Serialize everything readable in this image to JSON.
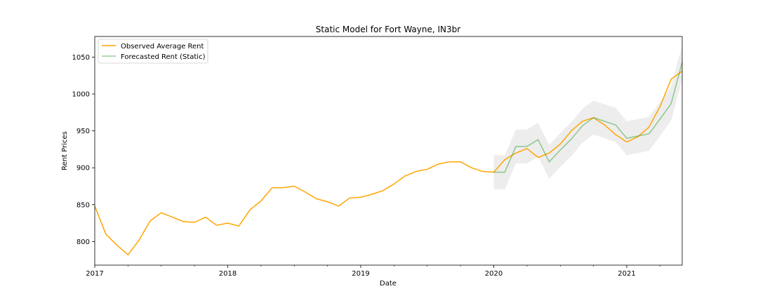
{
  "chart_data": {
    "type": "line",
    "title": "Static Model for Fort Wayne, IN3br",
    "xlabel": "Date",
    "ylabel": "Rent Prices",
    "xlim": [
      "2017-01",
      "2021-06"
    ],
    "ylim": [
      768,
      1078
    ],
    "x_ticks": [
      "2017",
      "2018",
      "2019",
      "2020",
      "2021"
    ],
    "y_ticks": [
      800,
      850,
      900,
      950,
      1000,
      1050
    ],
    "grid": false,
    "legend_position": "top-left",
    "series": [
      {
        "name": "Observed Average Rent",
        "color": "#ffa500",
        "x": [
          "2017-01",
          "2017-02",
          "2017-03",
          "2017-04",
          "2017-05",
          "2017-06",
          "2017-07",
          "2017-08",
          "2017-09",
          "2017-10",
          "2017-11",
          "2017-12",
          "2018-01",
          "2018-02",
          "2018-03",
          "2018-04",
          "2018-05",
          "2018-06",
          "2018-07",
          "2018-08",
          "2018-09",
          "2018-10",
          "2018-11",
          "2018-12",
          "2019-01",
          "2019-02",
          "2019-03",
          "2019-04",
          "2019-05",
          "2019-06",
          "2019-07",
          "2019-08",
          "2019-09",
          "2019-10",
          "2019-11",
          "2019-12",
          "2020-01",
          "2020-02",
          "2020-03",
          "2020-04",
          "2020-05",
          "2020-06",
          "2020-07",
          "2020-08",
          "2020-09",
          "2020-10",
          "2020-11",
          "2020-12",
          "2021-01",
          "2021-02",
          "2021-03",
          "2021-04",
          "2021-05",
          "2021-06"
        ],
        "values": [
          848,
          810,
          795,
          782,
          802,
          828,
          839,
          833,
          827,
          826,
          833,
          822,
          825,
          821,
          843,
          855,
          873,
          873,
          875,
          867,
          858,
          854,
          848,
          859,
          860,
          864,
          869,
          878,
          889,
          895,
          898,
          905,
          908,
          908,
          900,
          895,
          894,
          911,
          920,
          926,
          914,
          920,
          932,
          950,
          963,
          968,
          958,
          945,
          935,
          942,
          955,
          983,
          1020,
          1031
        ]
      },
      {
        "name": "Forecasted Rent (Static)",
        "color": "#2ca02c",
        "x": [
          "2020-01",
          "2020-02",
          "2020-03",
          "2020-04",
          "2020-05",
          "2020-06",
          "2020-07",
          "2020-08",
          "2020-09",
          "2020-10",
          "2020-11",
          "2020-12",
          "2021-01",
          "2021-02",
          "2021-03",
          "2021-04",
          "2021-05",
          "2021-06"
        ],
        "values": [
          894,
          894,
          929,
          929,
          938,
          908,
          924,
          939,
          957,
          968,
          963,
          958,
          940,
          943,
          946,
          966,
          987,
          1043
        ],
        "lower": [
          871,
          871,
          906,
          906,
          915,
          885,
          901,
          916,
          934,
          945,
          940,
          935,
          917,
          920,
          923,
          943,
          964,
          1020
        ],
        "upper": [
          917,
          917,
          952,
          952,
          961,
          931,
          947,
          962,
          980,
          991,
          986,
          981,
          963,
          966,
          969,
          989,
          1010,
          1066
        ]
      }
    ]
  }
}
